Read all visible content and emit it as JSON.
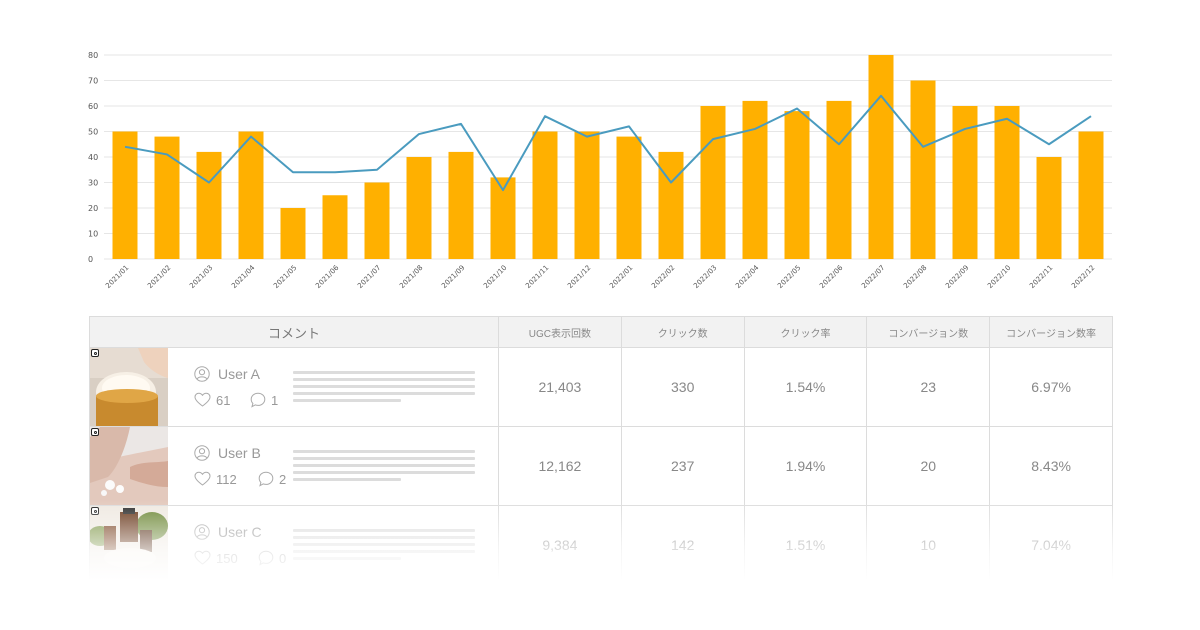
{
  "chart_data": {
    "type": "bar",
    "categories": [
      "2021/01",
      "2021/02",
      "2021/03",
      "2021/04",
      "2021/05",
      "2021/06",
      "2021/07",
      "2021/08",
      "2021/09",
      "2021/10",
      "2021/11",
      "2021/12",
      "2022/01",
      "2022/02",
      "2022/03",
      "2022/04",
      "2022/05",
      "2022/06",
      "2022/07",
      "2022/08",
      "2022/09",
      "2022/10",
      "2022/11",
      "2022/12"
    ],
    "series": [
      {
        "type": "bar",
        "values": [
          50,
          48,
          42,
          50,
          20,
          25,
          30,
          40,
          42,
          32,
          50,
          50,
          48,
          42,
          60,
          62,
          58,
          62,
          80,
          70,
          60,
          60,
          40,
          50
        ],
        "color": "#FFB000"
      },
      {
        "type": "line",
        "values": [
          44,
          41,
          30,
          48,
          34,
          34,
          35,
          49,
          53,
          27,
          56,
          48,
          52,
          30,
          47,
          51,
          59,
          45,
          64,
          44,
          51,
          55,
          45,
          56
        ],
        "color": "#4A9BBF"
      }
    ],
    "y_ticks": [
      0,
      10,
      20,
      30,
      40,
      50,
      60,
      70,
      80
    ],
    "ylim": [
      0,
      80
    ],
    "grid": true,
    "legend": "none"
  },
  "table": {
    "headers": {
      "comment": "コメント",
      "metrics": [
        "UGC表示回数",
        "クリック数",
        "クリック率",
        "コンバージョン数",
        "コンバージョン数率"
      ]
    },
    "rows": [
      {
        "user": "User A",
        "likes": "61",
        "comments": "1",
        "image": "cream-jar-photo",
        "values": [
          "21,403",
          "330",
          "1.54%",
          "23",
          "6.97%"
        ]
      },
      {
        "user": "User B",
        "likes": "112",
        "comments": "2",
        "image": "hand-lotion-photo",
        "values": [
          "12,162",
          "237",
          "1.94%",
          "20",
          "8.43%"
        ]
      },
      {
        "user": "User C",
        "likes": "150",
        "comments": "0",
        "image": "bottles-leaves-photo",
        "values": [
          "9,384",
          "142",
          "1.51%",
          "10",
          "7.04%"
        ]
      }
    ]
  },
  "icons": {
    "user": "user-circle-icon",
    "like": "heart-icon",
    "comment": "speech-bubble-icon",
    "source": "instagram-icon"
  },
  "colors": {
    "bar": "#FFB000",
    "line": "#4A9BBF",
    "grid": "#e6e6e6",
    "border": "#dcdcdc",
    "header_bg": "#f2f2f2"
  }
}
